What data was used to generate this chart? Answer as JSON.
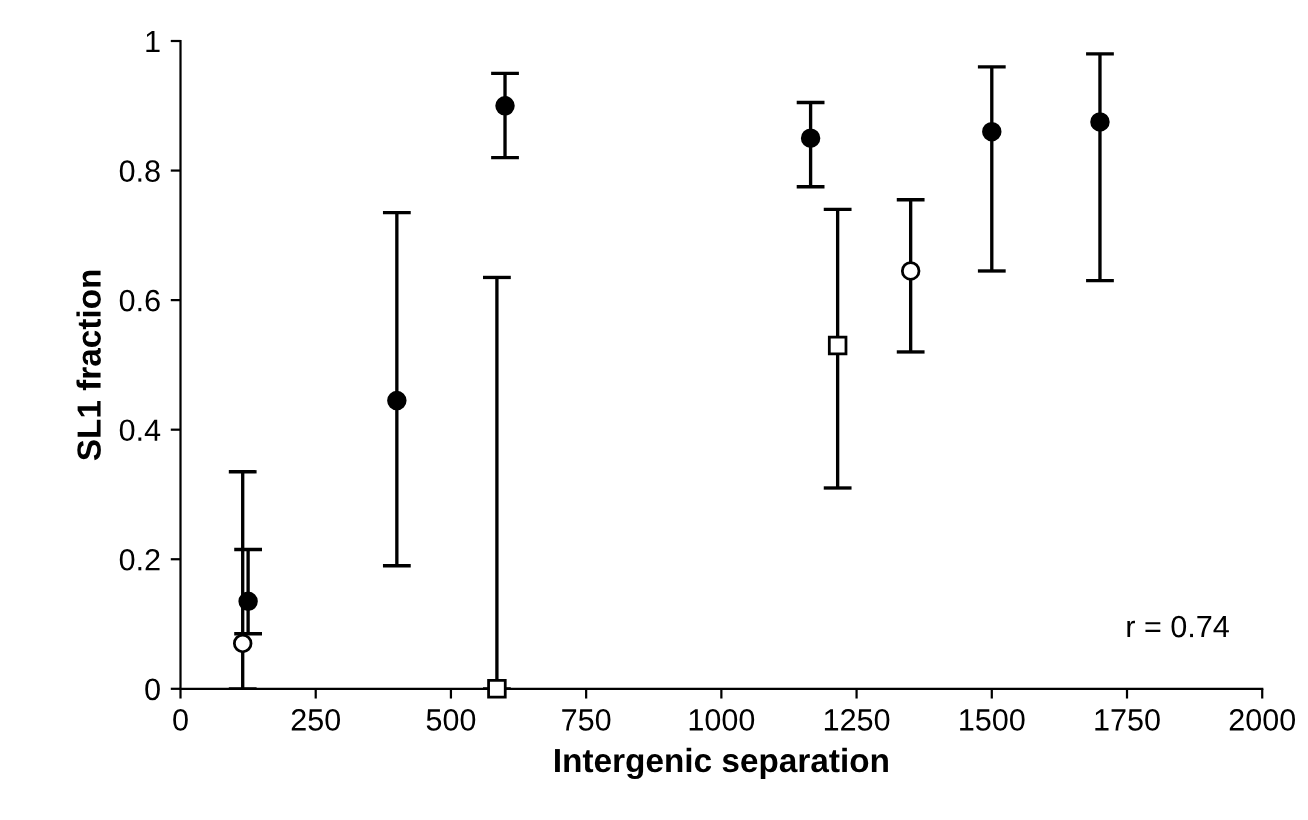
{
  "chart_data": {
    "type": "scatter",
    "xlabel": "Intergenic separation",
    "ylabel": "SL1 fraction",
    "xlim": [
      0,
      2000
    ],
    "xticks": [
      0,
      250,
      500,
      750,
      1000,
      1250,
      1500,
      1750,
      2000
    ],
    "ylim": [
      0,
      1
    ],
    "yticks": [
      0,
      0.2,
      0.4,
      0.6,
      0.8,
      1
    ],
    "grid": false,
    "legend": false,
    "annotations": [
      "r = 0.74"
    ],
    "series": [
      {
        "color": "#000000",
        "marker": "circle",
        "x": [
          125,
          400,
          600,
          1165,
          1500,
          1700
        ],
        "values": [
          0.135,
          0.445,
          0.9,
          0.85,
          0.86,
          0.875
        ],
        "errors": [
          [
            0.085,
            0.215
          ],
          [
            0.19,
            0.735
          ],
          [
            0.82,
            0.95
          ],
          [
            0.775,
            0.905
          ],
          [
            0.645,
            0.96
          ],
          [
            0.63,
            0.98
          ]
        ]
      },
      {
        "color": "#ffffff",
        "marker": "circle",
        "x": [
          115,
          1350
        ],
        "values": [
          0.07,
          0.645
        ],
        "errors": [
          [
            0,
            0.335
          ],
          [
            0.52,
            0.755
          ]
        ]
      },
      {
        "color": "#ffffff",
        "marker": "square",
        "x": [
          585,
          1215
        ],
        "values": [
          0,
          0.53
        ],
        "errors": [
          [
            0,
            0.635
          ],
          [
            0.31,
            0.74
          ]
        ]
      }
    ]
  }
}
